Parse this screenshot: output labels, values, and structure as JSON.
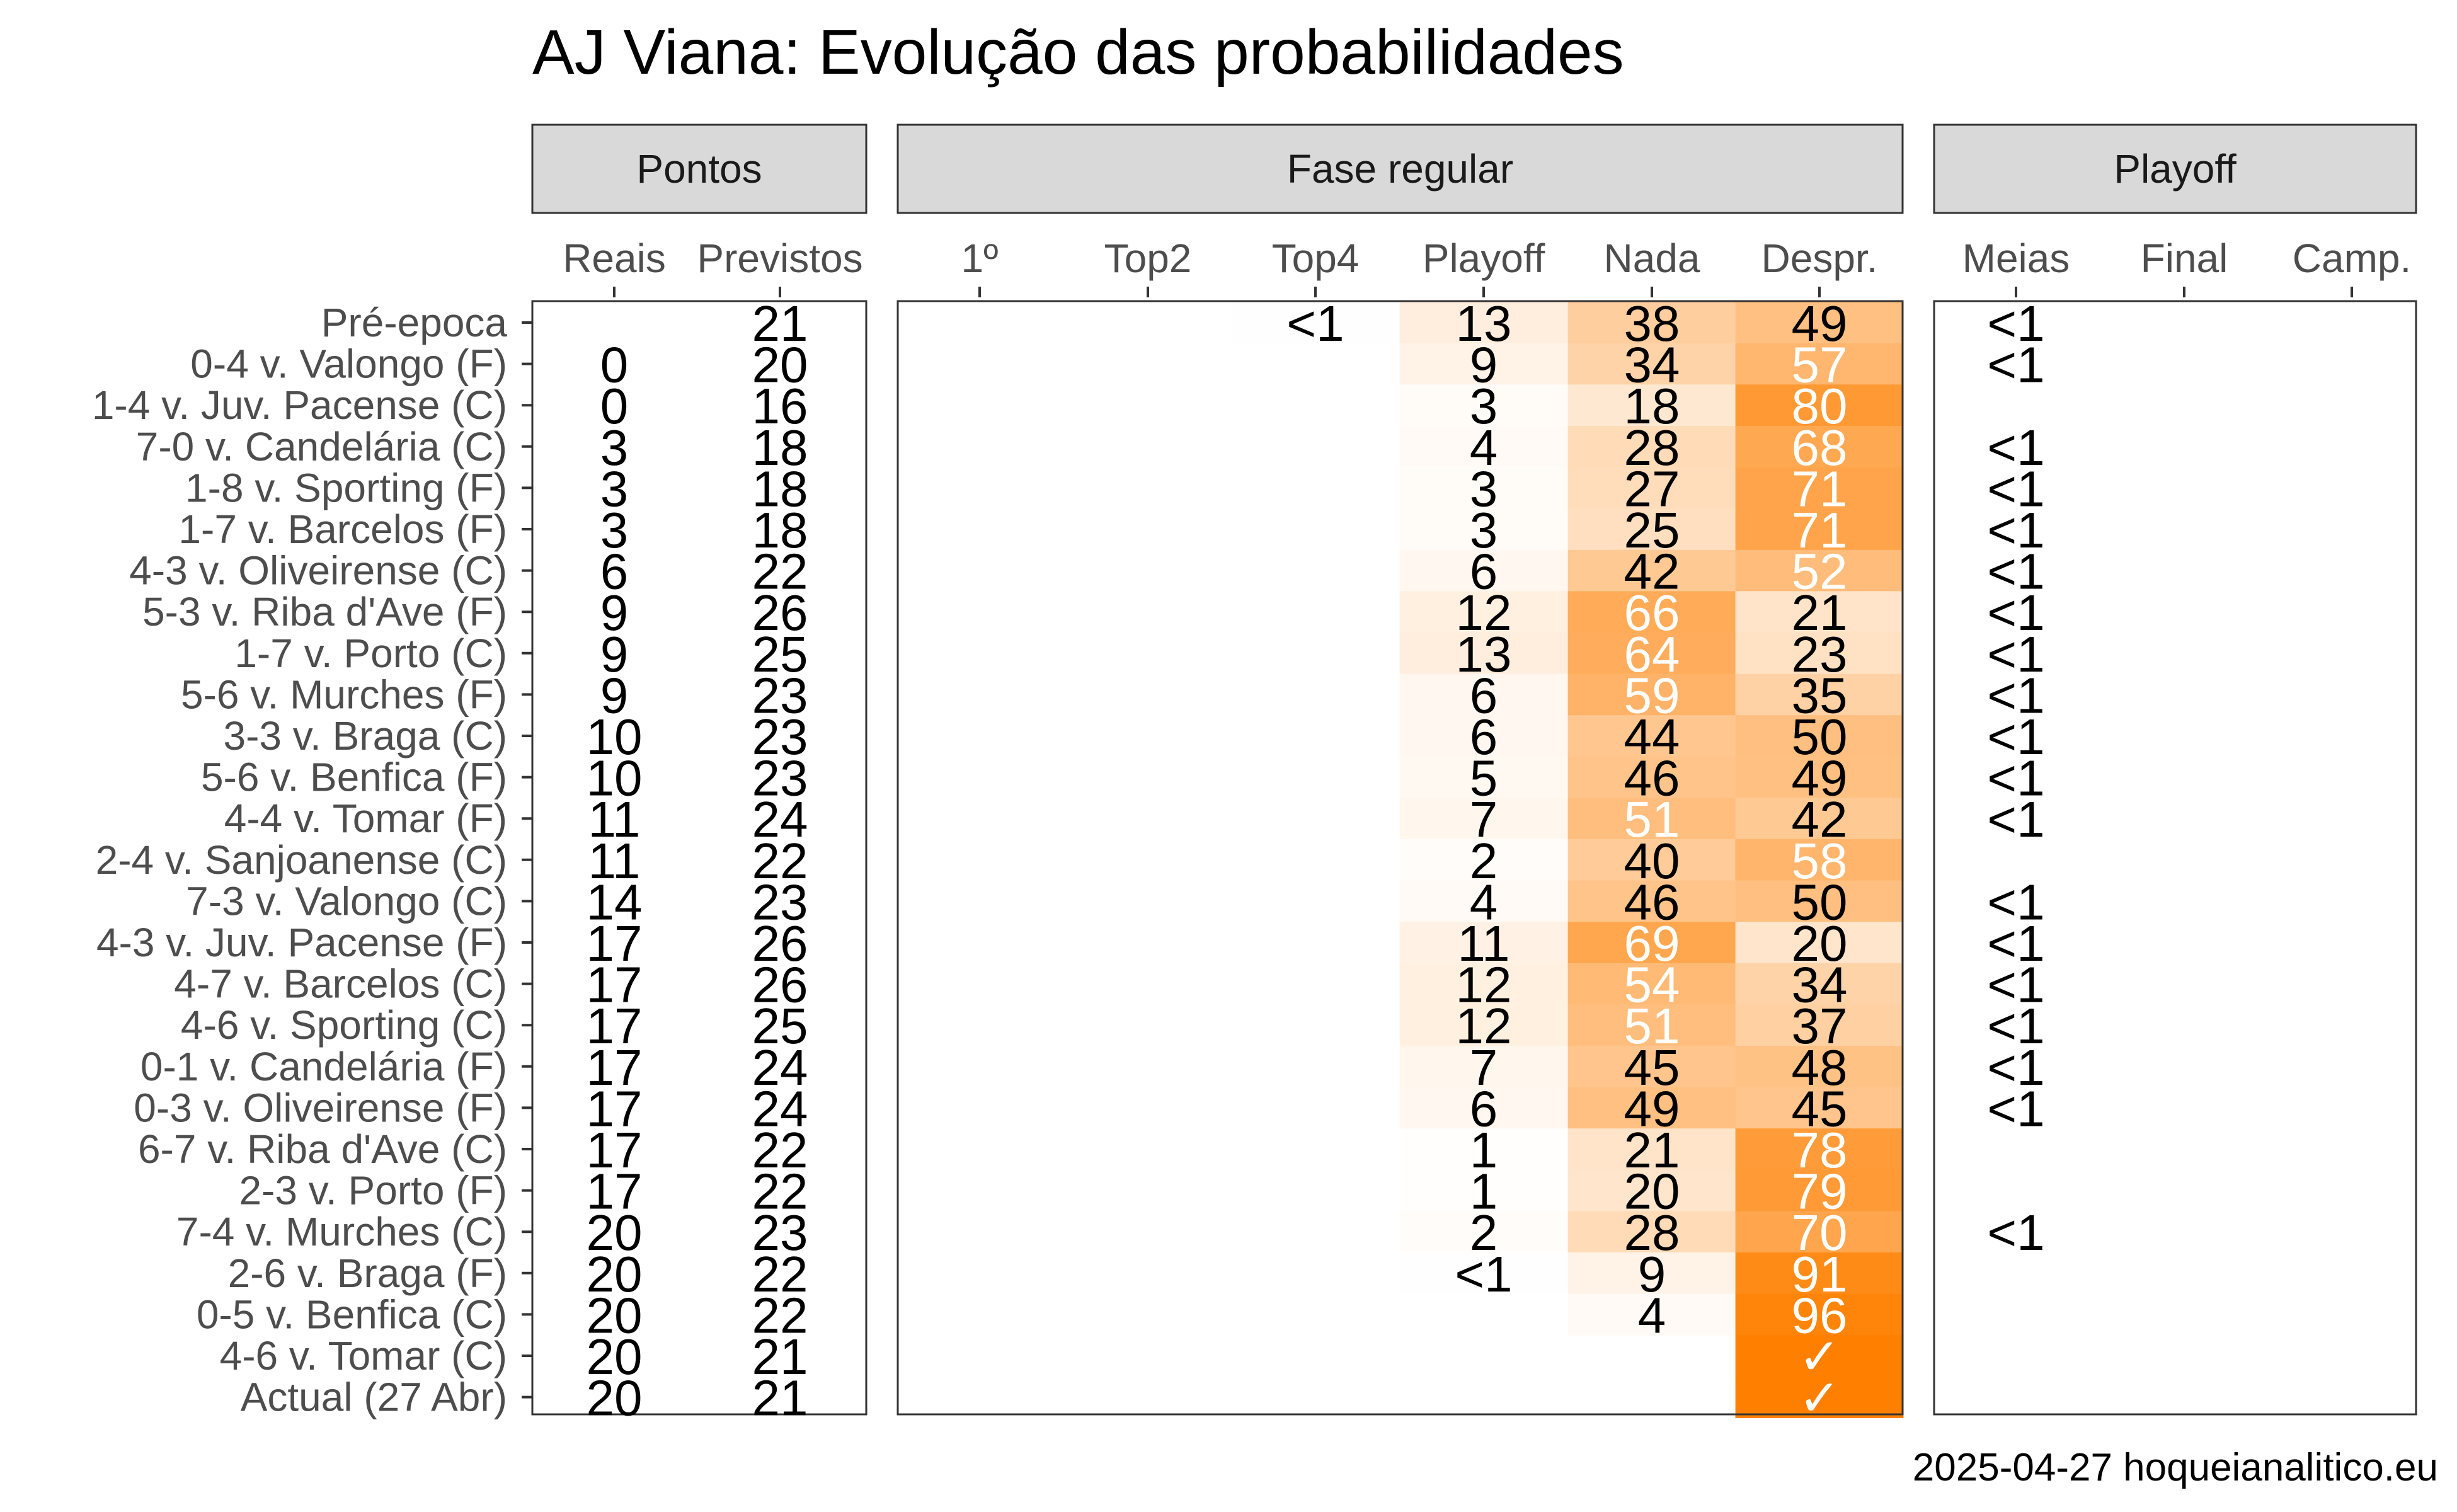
{
  "title": "AJ Viana: Evolução das probabilidades",
  "caption": "2025-04-27 hoqueianalitico.eu",
  "chart_data": {
    "type": "heatmap",
    "title": "AJ Viana: Evolução das probabilidades",
    "fill_low": "#ffffff",
    "fill_high": "#ff7f00",
    "panels": [
      {
        "name": "Pontos",
        "columns": [
          "Reais",
          "Previstos"
        ],
        "shaded": false
      },
      {
        "name": "Fase regular",
        "columns": [
          "1º",
          "Top2",
          "Top4",
          "Playoff",
          "Nada",
          "Despr."
        ],
        "shaded": true
      },
      {
        "name": "Playoff",
        "columns": [
          "Meias",
          "Final",
          "Camp."
        ],
        "shaded": false
      }
    ],
    "rows": [
      "Pré-epoca",
      "0-4 v. Valongo (F)",
      "1-4 v. Juv. Pacense (C)",
      "7-0 v. Candelária (C)",
      "1-8 v. Sporting (F)",
      "1-7 v. Barcelos (F)",
      "4-3 v. Oliveirense (C)",
      "5-3 v. Riba d'Ave (F)",
      "1-7 v. Porto (C)",
      "5-6 v. Murches (F)",
      "3-3 v. Braga (C)",
      "5-6 v. Benfica (F)",
      "4-4 v. Tomar (F)",
      "2-4 v. Sanjoanense (C)",
      "7-3 v. Valongo (C)",
      "4-3 v. Juv. Pacense (F)",
      "4-7 v. Barcelos (C)",
      "4-6 v. Sporting (C)",
      "0-1 v. Candelária (F)",
      "0-3 v. Oliveirense (F)",
      "6-7 v. Riba d'Ave (C)",
      "2-3 v. Porto (F)",
      "7-4 v. Murches (C)",
      "2-6 v. Braga (F)",
      "0-5 v. Benfica (C)",
      "4-6 v. Tomar (C)",
      "Actual (27 Abr)"
    ],
    "values": {
      "Reais": [
        "",
        "0",
        "0",
        "3",
        "3",
        "3",
        "6",
        "9",
        "9",
        "9",
        "10",
        "10",
        "11",
        "11",
        "14",
        "17",
        "17",
        "17",
        "17",
        "17",
        "17",
        "17",
        "20",
        "20",
        "20",
        "20",
        "20"
      ],
      "Previstos": [
        "21",
        "20",
        "16",
        "18",
        "18",
        "18",
        "22",
        "26",
        "25",
        "23",
        "23",
        "23",
        "24",
        "22",
        "23",
        "26",
        "26",
        "25",
        "24",
        "24",
        "22",
        "22",
        "23",
        "22",
        "22",
        "21",
        "21"
      ],
      "1º": [
        "",
        "",
        "",
        "",
        "",
        "",
        "",
        "",
        "",
        "",
        "",
        "",
        "",
        "",
        "",
        "",
        "",
        "",
        "",
        "",
        "",
        "",
        "",
        "",
        "",
        "",
        ""
      ],
      "Top2": [
        "",
        "",
        "",
        "",
        "",
        "",
        "",
        "",
        "",
        "",
        "",
        "",
        "",
        "",
        "",
        "",
        "",
        "",
        "",
        "",
        "",
        "",
        "",
        "",
        "",
        "",
        ""
      ],
      "Top4": [
        "<1",
        "",
        "",
        "",
        "",
        "",
        "",
        "",
        "",
        "",
        "",
        "",
        "",
        "",
        "",
        "",
        "",
        "",
        "",
        "",
        "",
        "",
        "",
        "",
        "",
        "",
        ""
      ],
      "Playoff": [
        "13",
        "9",
        "3",
        "4",
        "3",
        "3",
        "6",
        "12",
        "13",
        "6",
        "6",
        "5",
        "7",
        "2",
        "4",
        "11",
        "12",
        "12",
        "7",
        "6",
        "1",
        "1",
        "2",
        "<1",
        "",
        "",
        ""
      ],
      "Nada": [
        "38",
        "34",
        "18",
        "28",
        "27",
        "25",
        "42",
        "66",
        "64",
        "59",
        "44",
        "46",
        "51",
        "40",
        "46",
        "69",
        "54",
        "51",
        "45",
        "49",
        "21",
        "20",
        "28",
        "9",
        "4",
        "",
        ""
      ],
      "Despr.": [
        "49",
        "57",
        "80",
        "68",
        "71",
        "71",
        "52",
        "21",
        "23",
        "35",
        "50",
        "49",
        "42",
        "58",
        "50",
        "20",
        "34",
        "37",
        "48",
        "45",
        "78",
        "79",
        "70",
        "91",
        "96",
        "✓",
        "✓"
      ],
      "Meias": [
        "<1",
        "<1",
        "",
        "<1",
        "<1",
        "<1",
        "<1",
        "<1",
        "<1",
        "<1",
        "<1",
        "<1",
        "<1",
        "",
        "<1",
        "<1",
        "<1",
        "<1",
        "<1",
        "<1",
        "",
        "",
        "<1",
        "",
        "",
        "",
        ""
      ],
      "Final": [
        "",
        "",
        "",
        "",
        "",
        "",
        "",
        "",
        "",
        "",
        "",
        "",
        "",
        "",
        "",
        "",
        "",
        "",
        "",
        "",
        "",
        "",
        "",
        "",
        "",
        "",
        ""
      ],
      "Camp.": [
        "",
        "",
        "",
        "",
        "",
        "",
        "",
        "",
        "",
        "",
        "",
        "",
        "",
        "",
        "",
        "",
        "",
        "",
        "",
        "",
        "",
        "",
        "",
        "",
        "",
        "",
        ""
      ]
    }
  }
}
